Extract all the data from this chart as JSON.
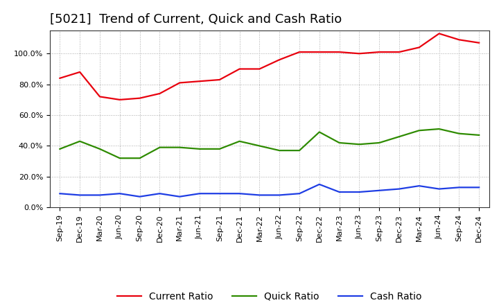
{
  "title": "[5021]  Trend of Current, Quick and Cash Ratio",
  "x_labels": [
    "Sep-19",
    "Dec-19",
    "Mar-20",
    "Jun-20",
    "Sep-20",
    "Dec-20",
    "Mar-21",
    "Jun-21",
    "Sep-21",
    "Dec-21",
    "Mar-22",
    "Jun-22",
    "Sep-22",
    "Dec-22",
    "Mar-23",
    "Jun-23",
    "Sep-23",
    "Dec-23",
    "Mar-24",
    "Jun-24",
    "Sep-24",
    "Dec-24"
  ],
  "current_ratio": [
    84,
    88,
    72,
    70,
    71,
    74,
    81,
    82,
    83,
    90,
    90,
    96,
    101,
    101,
    101,
    100,
    101,
    101,
    104,
    113,
    109,
    107
  ],
  "quick_ratio": [
    38,
    43,
    38,
    32,
    32,
    39,
    39,
    38,
    38,
    43,
    40,
    37,
    37,
    49,
    42,
    41,
    42,
    46,
    50,
    51,
    48,
    47
  ],
  "cash_ratio": [
    9,
    8,
    8,
    9,
    7,
    9,
    7,
    9,
    9,
    9,
    8,
    8,
    9,
    15,
    10,
    10,
    11,
    12,
    14,
    12,
    13,
    13
  ],
  "current_color": "#e8000d",
  "quick_color": "#2e8b00",
  "cash_color": "#1e3de4",
  "ylim": [
    0,
    115
  ],
  "yticks": [
    0,
    20,
    40,
    60,
    80,
    100
  ],
  "ytick_labels": [
    "0.0%",
    "20.0%",
    "40.0%",
    "60.0%",
    "80.0%",
    "100.0%"
  ],
  "legend_labels": [
    "Current Ratio",
    "Quick Ratio",
    "Cash Ratio"
  ],
  "background_color": "#ffffff",
  "plot_bg_color": "#ffffff",
  "grid_color": "#aaaaaa",
  "title_fontsize": 13,
  "axis_fontsize": 8,
  "legend_fontsize": 10,
  "line_width": 1.6
}
